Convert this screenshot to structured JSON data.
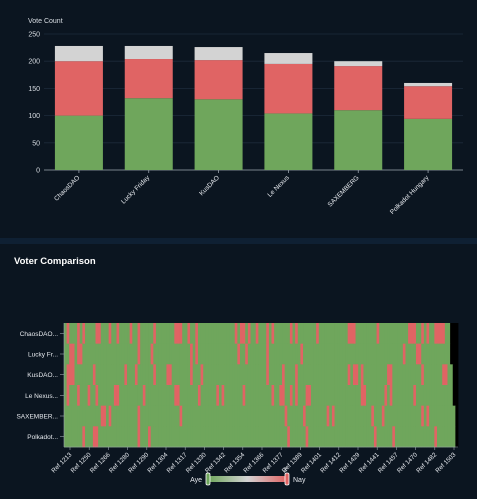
{
  "bar_chart": {
    "ylabel": "Vote Count"
  },
  "heatmap": {
    "title": "Voter Comparison",
    "legend": {
      "left": "Aye",
      "right": "Nay",
      "mid": "3"
    }
  },
  "colors": {
    "aye": "#6fa65c",
    "nay": "#e06464",
    "abstain": "#d3d3d3",
    "none": "#000000"
  },
  "chart_data": [
    {
      "type": "bar",
      "stacked": true,
      "categories": [
        "ChaosDAO",
        "Lucky Friday",
        "KusDAO",
        "Le Nexus",
        "SAXEMBERG",
        "Polkadot Hungary"
      ],
      "series": [
        {
          "values": [
            100,
            132,
            130,
            104,
            110,
            94
          ]
        },
        {
          "values": [
            100,
            72,
            72,
            91,
            81,
            60
          ]
        },
        {
          "values": [
            28,
            24,
            24,
            20,
            9,
            6
          ]
        }
      ],
      "ylim": [
        0,
        250
      ],
      "yticks": [
        0,
        50,
        100,
        150,
        200,
        250
      ],
      "ylabel": "Vote Count",
      "grid": true
    },
    {
      "type": "heatmap",
      "rows": [
        "ChaosDAO...",
        "Lucky Fr...",
        "KusDAO...",
        "Le Nexus...",
        "SAXEMBER...",
        "Polkadot..."
      ],
      "x_ticks": [
        "Ref 1213",
        "Ref 1250",
        "Ref 1266",
        "Ref 1280",
        "Ref 1290",
        "Ref 1304",
        "Ref 1317",
        "Ref 1330",
        "Ref 1342",
        "Ref 1354",
        "Ref 1366",
        "Ref 1377",
        "Ref 1389",
        "Ref 1401",
        "Ref 1412",
        "Ref 1429",
        "Ref 1441",
        "Ref 1457",
        "Ref 1470",
        "Ref 1482",
        "Ref 1503"
      ],
      "columns": 150,
      "values": [
        "ANAAANANAAAANNAAANAANAAAANAANAAAAANAAAAAAANNNAANAANAAAAAAAAAAAAAANANNANAANAAANANAAAAAANANAAAAAAANAAAAAAAAAAANNNAAAAAAAANAAAAAAAAAAANNNAANANAANNNNAA",
        "AANNANNAAAAAAAAAAAAAAAAAAAAANAAAANAAAAAAAAAAAAAANANAAAAAAAAAAAAAAANAANAAAAAAANAAAAAAAAAAAANAAAAAAAAAAAAAAAAAAAAAAAAAAAAAAAAAAAAAANAAAANNAAAAAAAAAAA",
        "ANNNAAAAAAANAAAAAAAAAAANAAANAAAAAANAAAANNAAAAAAANAAANAAAAAAAAAAAAAAAAAAAAAAAANAAAAANAAAANAAAAAAAAAAAAAAAAAAANANNANAAAAAAAAANNAAAAAAAAAAANAAAAAAANNAA",
        "ANAAANAAANAANAAAAAANNAAAAAAAAANAAAAAAAAAAANNAAAAAAANAAAAAANANAAAAAAANAAAAAAAAAANAANNAANANAAANNAAAAAAAAAAAAAAAAAAANNAAAAAAANANAAAAAAAANAAAAAAAAAAAAAA",
        "AAAAAAAAAAAAAANNANAAAAAAAAAANAAAAAAAAAAAAAAANAAAAAAAAAAAAAAAAAAAAAAAAAAAAAAAAAAAAAAANAAAAAANAAAAAAAANANAAAAAAAAAAAAAANAAANAAAAAAAAAAAAAANANAAAAAAAAAA",
        "AAAAAAANAAANNAAAAAAAAAAAAAAANAAANAAAAAAAAAAAAAAAAAAAAAAAAAAAAAAAAAAAAAAAAAAAAAAAAAAAANAAAAAANAAAAAAAAAAAAAAAAAAAAAAAAANAAAAAANAAAAAAAAAAAAAAANAAAAAAA"
      ],
      "legend": {
        "left": "Aye",
        "right": "Nay",
        "mid": "3"
      }
    }
  ]
}
